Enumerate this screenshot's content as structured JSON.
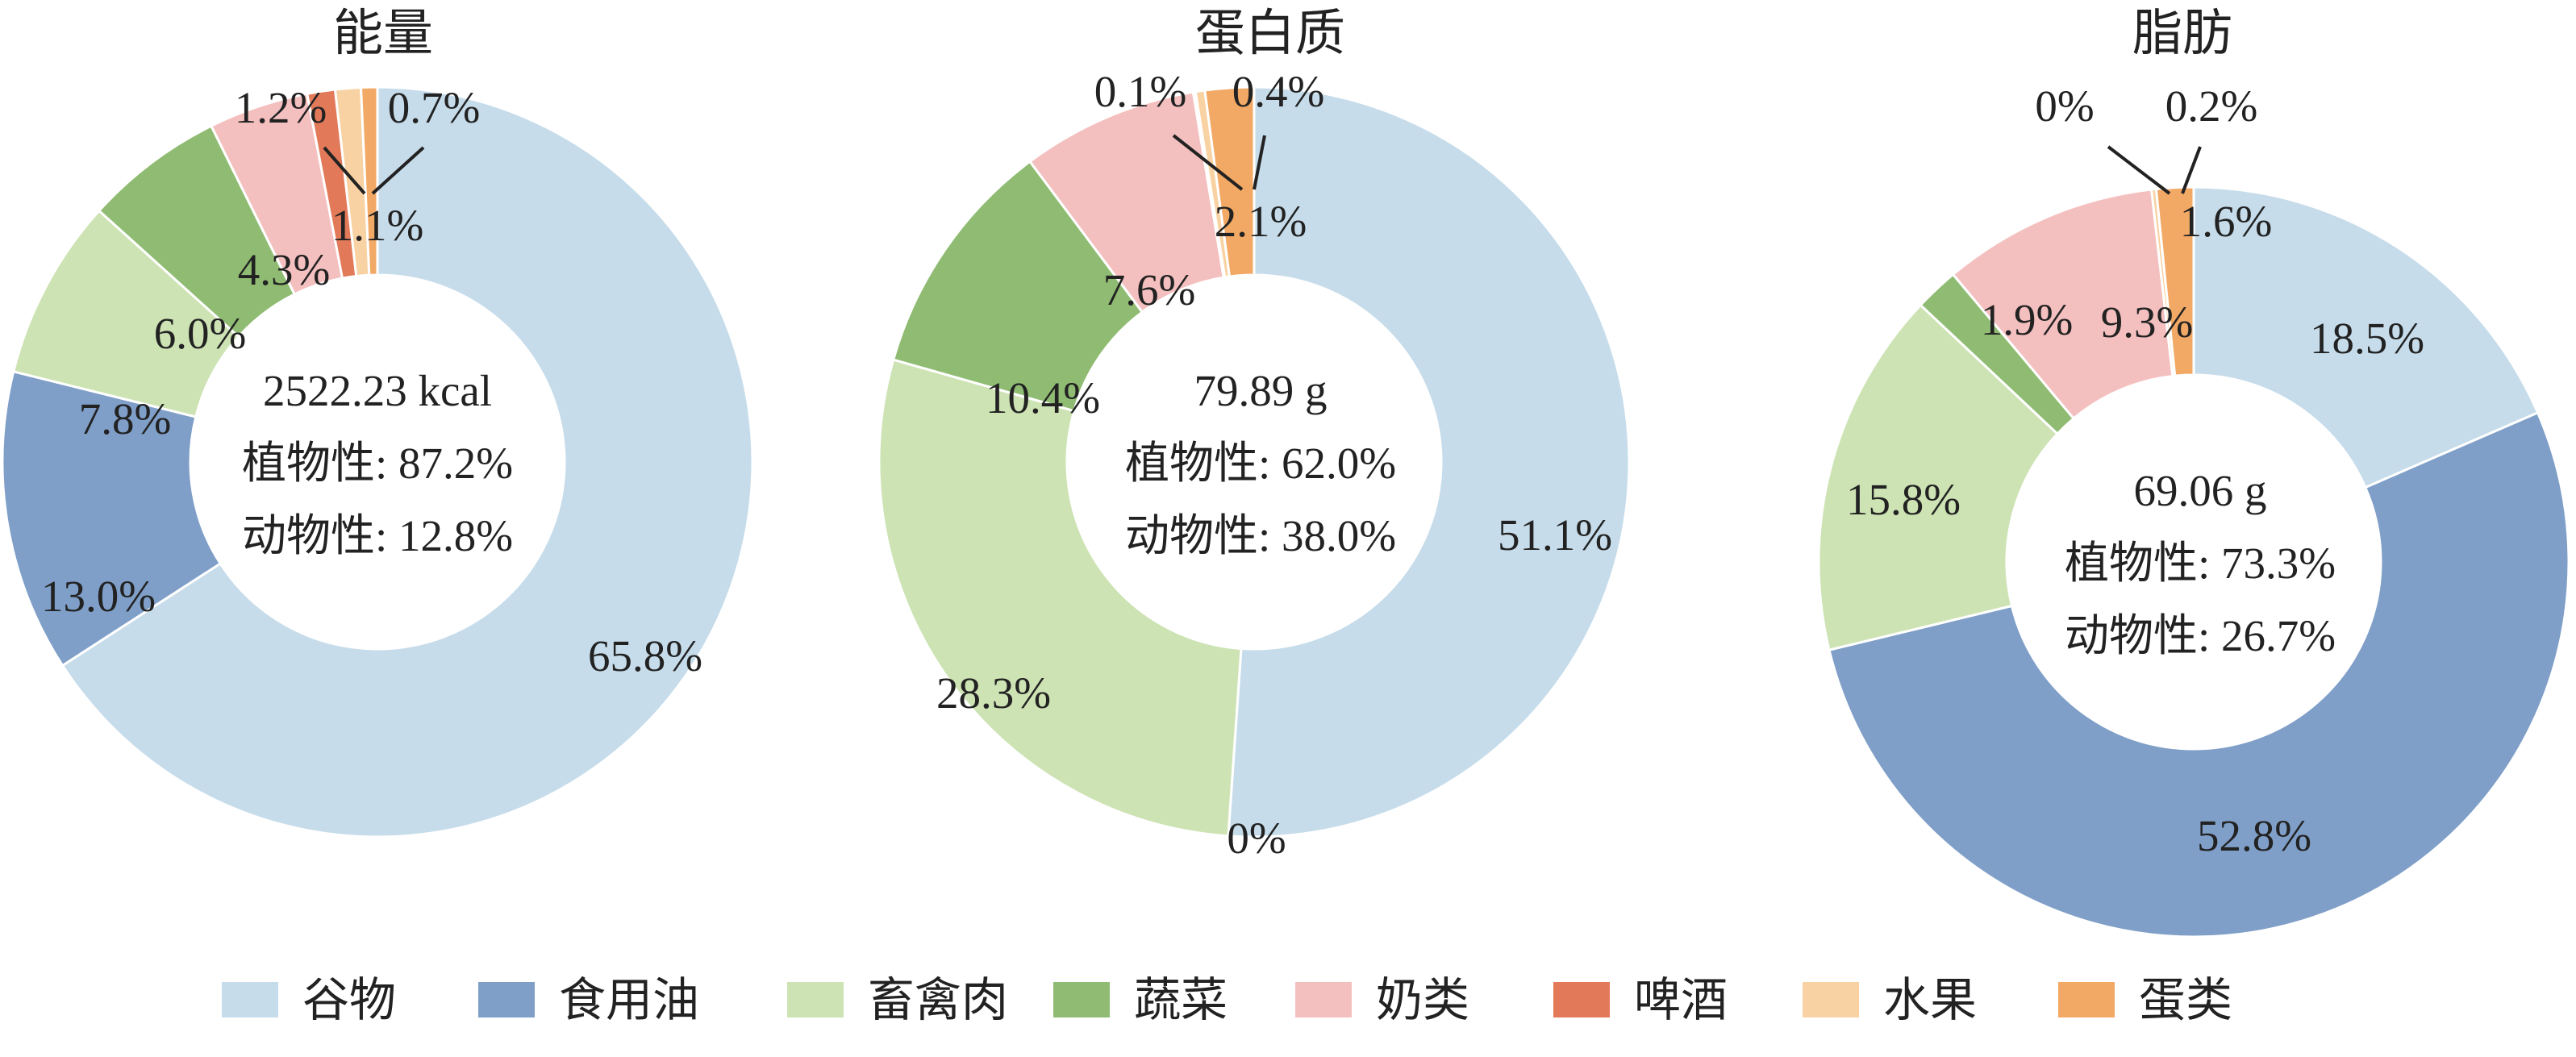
{
  "legend": [
    {
      "name": "谷物",
      "color": "#c6dcea"
    },
    {
      "name": "食用油",
      "color": "#7f9fc8"
    },
    {
      "name": "畜禽肉",
      "color": "#cde3b4"
    },
    {
      "name": "蔬菜",
      "color": "#8fbc72"
    },
    {
      "name": "奶类",
      "color": "#f4c0bf"
    },
    {
      "name": "啤酒",
      "color": "#e27a5a"
    },
    {
      "name": "水果",
      "color": "#f8d2a2"
    },
    {
      "name": "蛋类",
      "color": "#f2a965"
    }
  ],
  "chart_data": [
    {
      "type": "pie",
      "title": "能量",
      "center_lines": [
        "2522.23 kcal",
        "植物性: 87.2%",
        "动物性: 12.8%"
      ],
      "slices": [
        {
          "category": "谷物",
          "value": 65.8,
          "label": "65.8%"
        },
        {
          "category": "食用油",
          "value": 13.0,
          "label": "13.0%"
        },
        {
          "category": "畜禽肉",
          "value": 7.8,
          "label": "7.8%"
        },
        {
          "category": "蔬菜",
          "value": 6.0,
          "label": "6.0%"
        },
        {
          "category": "奶类",
          "value": 4.3,
          "label": "4.3%"
        },
        {
          "category": "啤酒",
          "value": 1.2,
          "label": "1.2%"
        },
        {
          "category": "水果",
          "value": 1.1,
          "label": "1.1%"
        },
        {
          "category": "蛋类",
          "value": 0.7,
          "label": "0.7%"
        }
      ]
    },
    {
      "type": "pie",
      "title": "蛋白质",
      "center_lines": [
        "79.89 g",
        "植物性: 62.0%",
        "动物性: 38.0%"
      ],
      "slices": [
        {
          "category": "谷物",
          "value": 51.1,
          "label": "51.1%"
        },
        {
          "category": "食用油",
          "value": 0,
          "label": "0%"
        },
        {
          "category": "畜禽肉",
          "value": 28.3,
          "label": "28.3%"
        },
        {
          "category": "蔬菜",
          "value": 10.4,
          "label": "10.4%"
        },
        {
          "category": "奶类",
          "value": 7.6,
          "label": "7.6%"
        },
        {
          "category": "水果",
          "value": 0.4,
          "label": "0.4%"
        },
        {
          "category": "啤酒",
          "value": 0.1,
          "label": "0.1%"
        },
        {
          "category": "蛋类",
          "value": 2.1,
          "label": "2.1%"
        }
      ]
    },
    {
      "type": "pie",
      "title": "脂肪",
      "center_lines": [
        "69.06 g",
        "植物性: 73.3%",
        "动物性: 26.7%"
      ],
      "slices": [
        {
          "category": "谷物",
          "value": 18.5,
          "label": "18.5%"
        },
        {
          "category": "食用油",
          "value": 52.8,
          "label": "52.8%"
        },
        {
          "category": "畜禽肉",
          "value": 15.8,
          "label": "15.8%"
        },
        {
          "category": "蔬菜",
          "value": 1.9,
          "label": "1.9%"
        },
        {
          "category": "奶类",
          "value": 9.3,
          "label": "9.3%"
        },
        {
          "category": "啤酒",
          "value": 0,
          "label": "0%"
        },
        {
          "category": "水果",
          "value": 0.2,
          "label": "0.2%"
        },
        {
          "category": "蛋类",
          "value": 1.6,
          "label": "1.6%"
        }
      ]
    }
  ]
}
